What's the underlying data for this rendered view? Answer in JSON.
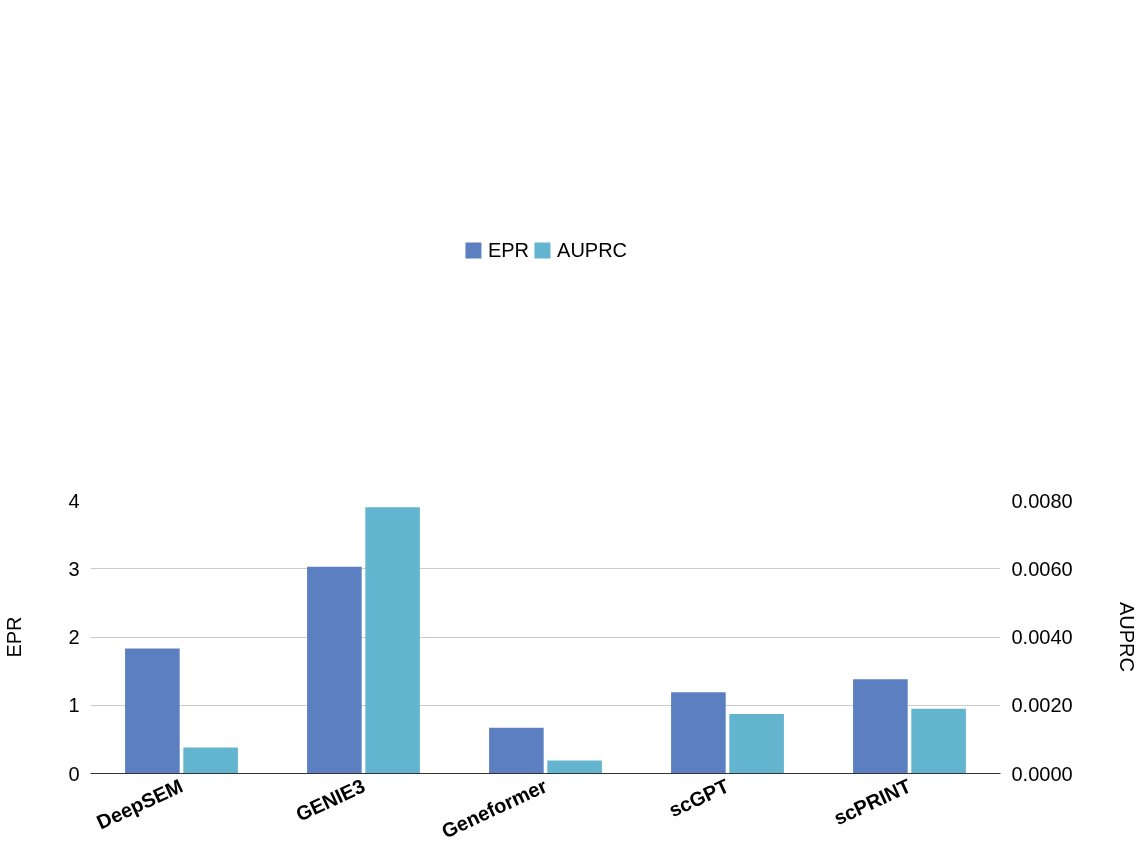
{
  "chart_data": {
    "type": "bar",
    "ylabel": "EPR",
    "y2label": "AUPRC",
    "categories": [
      "DeepSEM",
      "GENIE3",
      "Geneformer",
      "scGPT",
      "scPRINT"
    ],
    "series": [
      {
        "name": "EPR",
        "color": "#5b7fc0",
        "values": [
          1.83,
          3.03,
          0.67,
          1.19,
          1.38
        ]
      },
      {
        "name": "AUPRC",
        "color": "#63b5cf",
        "axis": "y2",
        "values": [
          0.00076,
          0.0078,
          0.00038,
          0.00174,
          0.0019
        ]
      }
    ],
    "ylim": [
      0,
      4
    ],
    "yticks": [
      0,
      1,
      2,
      3,
      4
    ],
    "y2lim": [
      0,
      0.008
    ],
    "y2ticks": [
      {
        "value": 0,
        "label": "0.0000"
      },
      {
        "value": 0.002,
        "label": "0.0020"
      },
      {
        "value": 0.004,
        "label": "0.0040"
      },
      {
        "value": 0.006,
        "label": "0.0060"
      },
      {
        "value": 0.008,
        "label": "0.0080"
      }
    ],
    "grid": "y",
    "legend": "top"
  }
}
